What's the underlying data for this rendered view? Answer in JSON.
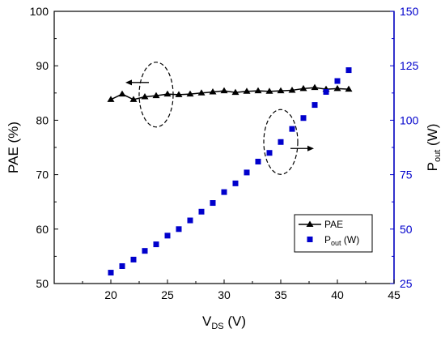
{
  "chart_data": {
    "type": "scatter",
    "x": [
      20,
      21,
      22,
      23,
      24,
      25,
      26,
      27,
      28,
      29,
      30,
      31,
      32,
      33,
      34,
      35,
      36,
      37,
      38,
      39,
      40,
      41
    ],
    "xlabel": {
      "main": "V",
      "sub": "DS",
      "rest": " (V)"
    },
    "xlim": [
      15,
      45
    ],
    "xticks": [
      20,
      25,
      30,
      35,
      40,
      45
    ],
    "y_left": {
      "label": "PAE (%)",
      "lim": [
        50,
        100
      ],
      "ticks": [
        50,
        60,
        70,
        80,
        90,
        100
      ],
      "color": "#000000"
    },
    "y_right": {
      "label": {
        "main": "P",
        "sub": "out",
        "rest": " (W)"
      },
      "lim": [
        25,
        150
      ],
      "ticks": [
        25,
        50,
        75,
        100,
        125,
        150
      ],
      "color": "#0000cc"
    },
    "series": [
      {
        "name": "PAE",
        "axis": "left",
        "marker": "triangle-up",
        "line": true,
        "color": "#000000",
        "values": [
          83.8,
          84.8,
          83.8,
          84.3,
          84.5,
          84.8,
          84.7,
          84.8,
          85.0,
          85.2,
          85.4,
          85.1,
          85.3,
          85.4,
          85.3,
          85.4,
          85.5,
          85.8,
          86.0,
          85.7,
          85.8,
          85.7
        ]
      },
      {
        "name": "P_out (W)",
        "legend": {
          "main": "P",
          "sub": "out",
          "rest": " (W)"
        },
        "axis": "right",
        "marker": "square",
        "line": false,
        "color": "#0000cc",
        "values": [
          30,
          33,
          36,
          40,
          43,
          47,
          50,
          54,
          58,
          62,
          67,
          71,
          76,
          81,
          85,
          90,
          96,
          101,
          107,
          113,
          118,
          123
        ]
      }
    ],
    "annotations": [
      {
        "type": "ellipse",
        "x": 24,
        "y": 84.7,
        "axis": "left",
        "arrow": "left"
      },
      {
        "type": "ellipse",
        "x": 35,
        "y": 90,
        "axis": "right",
        "arrow": "right"
      }
    ],
    "legend_position": "bottom-right",
    "grid": false
  }
}
